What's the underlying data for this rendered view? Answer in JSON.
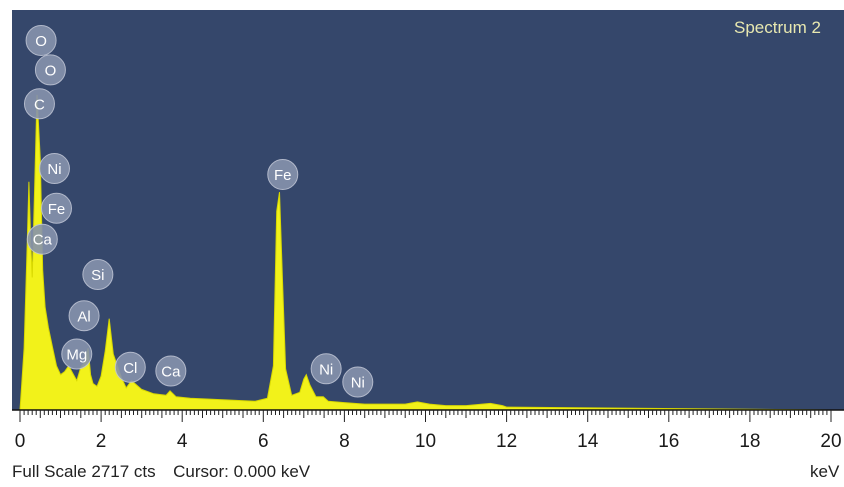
{
  "spectrum_title": "Spectrum 2",
  "status": {
    "full_scale": "Full Scale 2717 cts",
    "cursor": "Cursor: 0.000 keV"
  },
  "colors": {
    "background": "#35476b",
    "spectrum_fill": "#f2f21a",
    "peak_label_fill": "#8793ad"
  },
  "chart_data": {
    "type": "area",
    "title": "Spectrum 2",
    "xlabel": "keV",
    "ylabel": "",
    "xlim": [
      0,
      20
    ],
    "ylim": [
      0,
      2717
    ],
    "full_scale_cts": 2717,
    "x_ticks": [
      "0",
      "2",
      "4",
      "6",
      "8",
      "10",
      "12",
      "14",
      "16",
      "18",
      "20"
    ],
    "grid": false,
    "series": [
      {
        "x": [
          0.0,
          0.1,
          0.18,
          0.22,
          0.26,
          0.3,
          0.36,
          0.42,
          0.5,
          0.56,
          0.62,
          0.7,
          0.8,
          0.9,
          1.0,
          1.1,
          1.2,
          1.3,
          1.4,
          1.5,
          1.6,
          1.68,
          1.74,
          1.8,
          1.9,
          2.0,
          2.1,
          2.2,
          2.3,
          2.5,
          2.62,
          2.75,
          3.0,
          3.3,
          3.6,
          3.7,
          3.85,
          4.2,
          5.0,
          5.8,
          6.1,
          6.25,
          6.33,
          6.4,
          6.47,
          6.55,
          6.7,
          6.9,
          7.0,
          7.06,
          7.15,
          7.3,
          7.48,
          7.6,
          8.0,
          8.5,
          9.0,
          9.5,
          9.8,
          10.1,
          10.5,
          11.0,
          11.4,
          11.6,
          11.9,
          12.0,
          20.0
        ],
        "values": [
          0,
          420,
          1150,
          1550,
          1200,
          900,
          1500,
          2140,
          1700,
          950,
          700,
          560,
          430,
          300,
          240,
          260,
          300,
          250,
          200,
          290,
          330,
          420,
          240,
          180,
          160,
          230,
          400,
          620,
          380,
          220,
          150,
          200,
          140,
          110,
          100,
          130,
          90,
          80,
          70,
          60,
          80,
          300,
          1350,
          1480,
          900,
          280,
          100,
          120,
          210,
          240,
          170,
          90,
          90,
          60,
          50,
          40,
          40,
          40,
          55,
          40,
          30,
          30,
          40,
          45,
          30,
          20,
          0
        ]
      }
    ],
    "peaks": [
      {
        "label": "O",
        "x": 0.52,
        "y": 2510
      },
      {
        "label": "O",
        "x": 0.75,
        "y": 2310
      },
      {
        "label": "C",
        "x": 0.48,
        "y": 2080
      },
      {
        "label": "Ni",
        "x": 0.85,
        "y": 1640
      },
      {
        "label": "Fe",
        "x": 0.9,
        "y": 1370
      },
      {
        "label": "Ca",
        "x": 0.55,
        "y": 1160
      },
      {
        "label": "Si",
        "x": 1.92,
        "y": 920
      },
      {
        "label": "Al",
        "x": 1.58,
        "y": 640
      },
      {
        "label": "Mg",
        "x": 1.4,
        "y": 380
      },
      {
        "label": "Cl",
        "x": 2.72,
        "y": 290
      },
      {
        "label": "Ca",
        "x": 3.72,
        "y": 265
      },
      {
        "label": "Fe",
        "x": 6.48,
        "y": 1600
      },
      {
        "label": "Ni",
        "x": 7.55,
        "y": 280
      },
      {
        "label": "Ni",
        "x": 8.33,
        "y": 190
      }
    ]
  }
}
